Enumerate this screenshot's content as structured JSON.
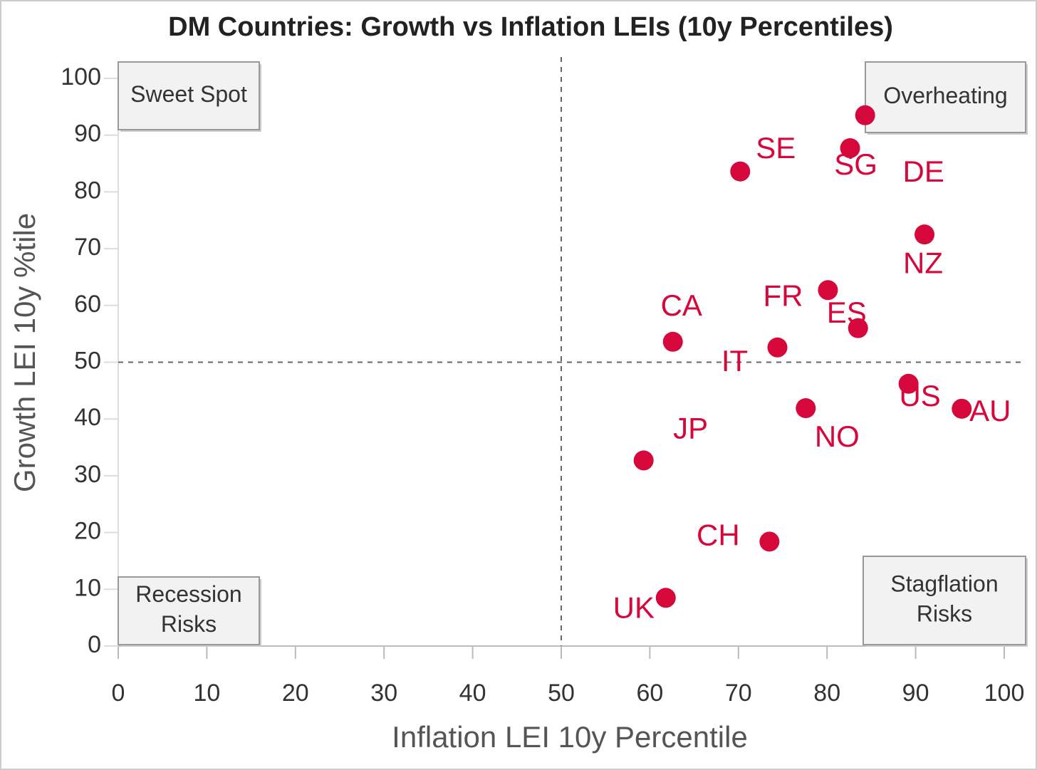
{
  "chart_data": {
    "type": "scatter",
    "title": "DM Countries: Growth vs Inflation LEIs (10y Percentiles)",
    "x_label": "Inflation LEI 10y Percentile",
    "y_label": "Growth LEI 10y %tile",
    "series": [
      {
        "color": "#d6083b",
        "labels": [
          "DE",
          "SG",
          "SE",
          "NZ",
          "FR",
          "ES",
          "CA",
          "IT",
          "US",
          "AU",
          "NO",
          "JP",
          "CH",
          "UK"
        ],
        "x": [
          84.3,
          82.6,
          70.2,
          91.0,
          80.1,
          83.5,
          62.6,
          74.4,
          89.2,
          95.2,
          77.6,
          59.3,
          73.5,
          61.8
        ],
        "values": [
          93.5,
          87.7,
          83.6,
          72.5,
          62.7,
          56.0,
          53.6,
          52.6,
          46.2,
          41.8,
          41.9,
          32.7,
          18.4,
          8.5
        ]
      }
    ],
    "xlim": [
      0,
      100
    ],
    "xticks": [
      0,
      10,
      20,
      30,
      40,
      50,
      60,
      70,
      80,
      90,
      100
    ],
    "ylim": [
      0,
      100
    ],
    "yticks": [
      0,
      10,
      20,
      30,
      40,
      50,
      60,
      70,
      80,
      90,
      100
    ],
    "reference_lines": {
      "x": 50,
      "y": 50
    },
    "quadrant_labels": [
      [
        "Sweet Spot"
      ],
      [
        "Overheating"
      ],
      [
        "Recession",
        "Risks"
      ],
      [
        "Stagflation",
        "Risks"
      ]
    ]
  }
}
